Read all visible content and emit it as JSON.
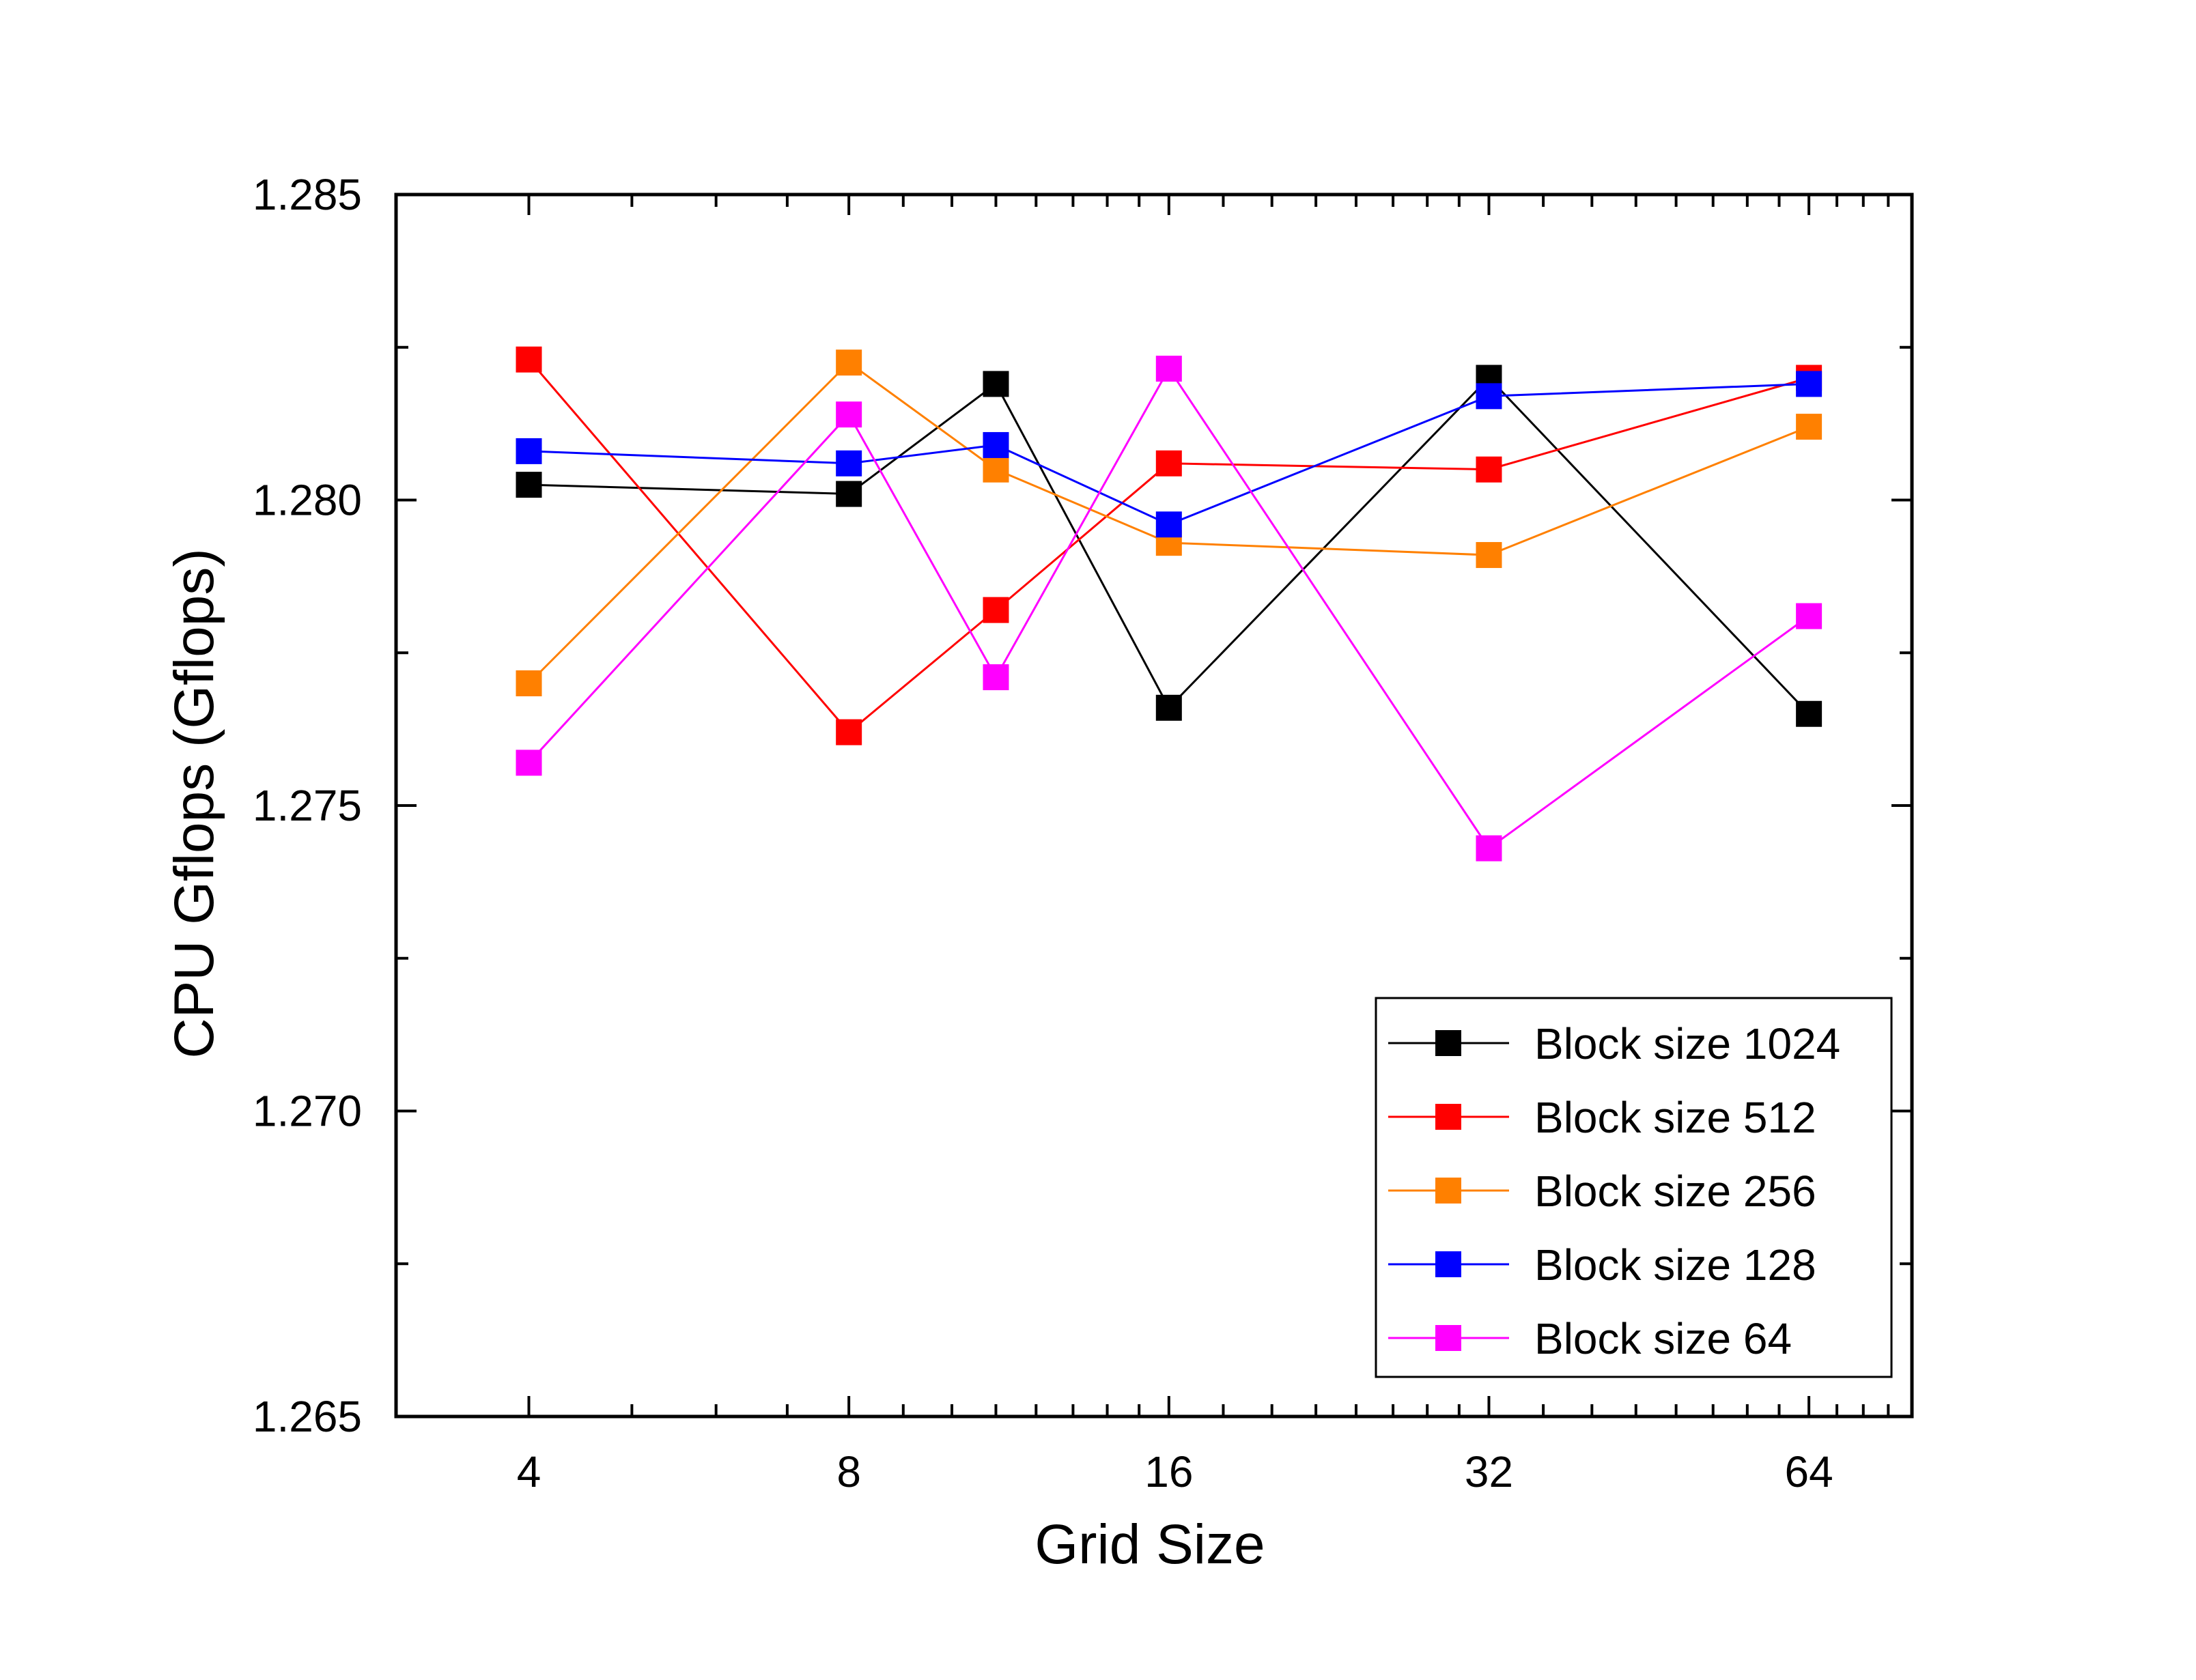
{
  "chart_data": {
    "type": "line",
    "xlabel": "Grid Size",
    "ylabel": "CPU Gflops (Gflops)",
    "x_scale": "log2",
    "x_ticks": [
      4,
      8,
      16,
      32,
      64
    ],
    "x_tick_labels": [
      "4",
      "8",
      "16",
      "32",
      "64"
    ],
    "xlim": [
      3.0,
      80.0
    ],
    "ylim": [
      1.265,
      1.285
    ],
    "y_ticks": [
      1.265,
      1.27,
      1.275,
      1.28,
      1.285
    ],
    "y_tick_labels": [
      "1.265",
      "1.270",
      "1.275",
      "1.280",
      "1.285"
    ],
    "x": [
      4,
      8,
      11,
      16,
      32,
      64
    ],
    "series": [
      {
        "name": "Block size 1024",
        "color": "#000000",
        "values": [
          1.28025,
          1.2801,
          1.2819,
          1.2766,
          1.282,
          1.2765
        ]
      },
      {
        "name": "Block size 512",
        "color": "#ff0000",
        "values": [
          1.2823,
          1.2762,
          1.2782,
          1.2806,
          1.2805,
          1.282
        ]
      },
      {
        "name": "Block size 256",
        "color": "#ff8000",
        "values": [
          1.277,
          1.28225,
          1.2805,
          1.2793,
          1.2791,
          1.2812
        ]
      },
      {
        "name": "Block size 128",
        "color": "#0000ff",
        "values": [
          1.2808,
          1.2806,
          1.2809,
          1.2796,
          1.2817,
          1.2819
        ]
      },
      {
        "name": "Block size 64",
        "color": "#ff00ff",
        "values": [
          1.2757,
          1.2814,
          1.2771,
          1.28215,
          1.2743,
          1.2781
        ]
      }
    ],
    "legend_position": "bottom-right",
    "grid": false,
    "marker": "square"
  }
}
